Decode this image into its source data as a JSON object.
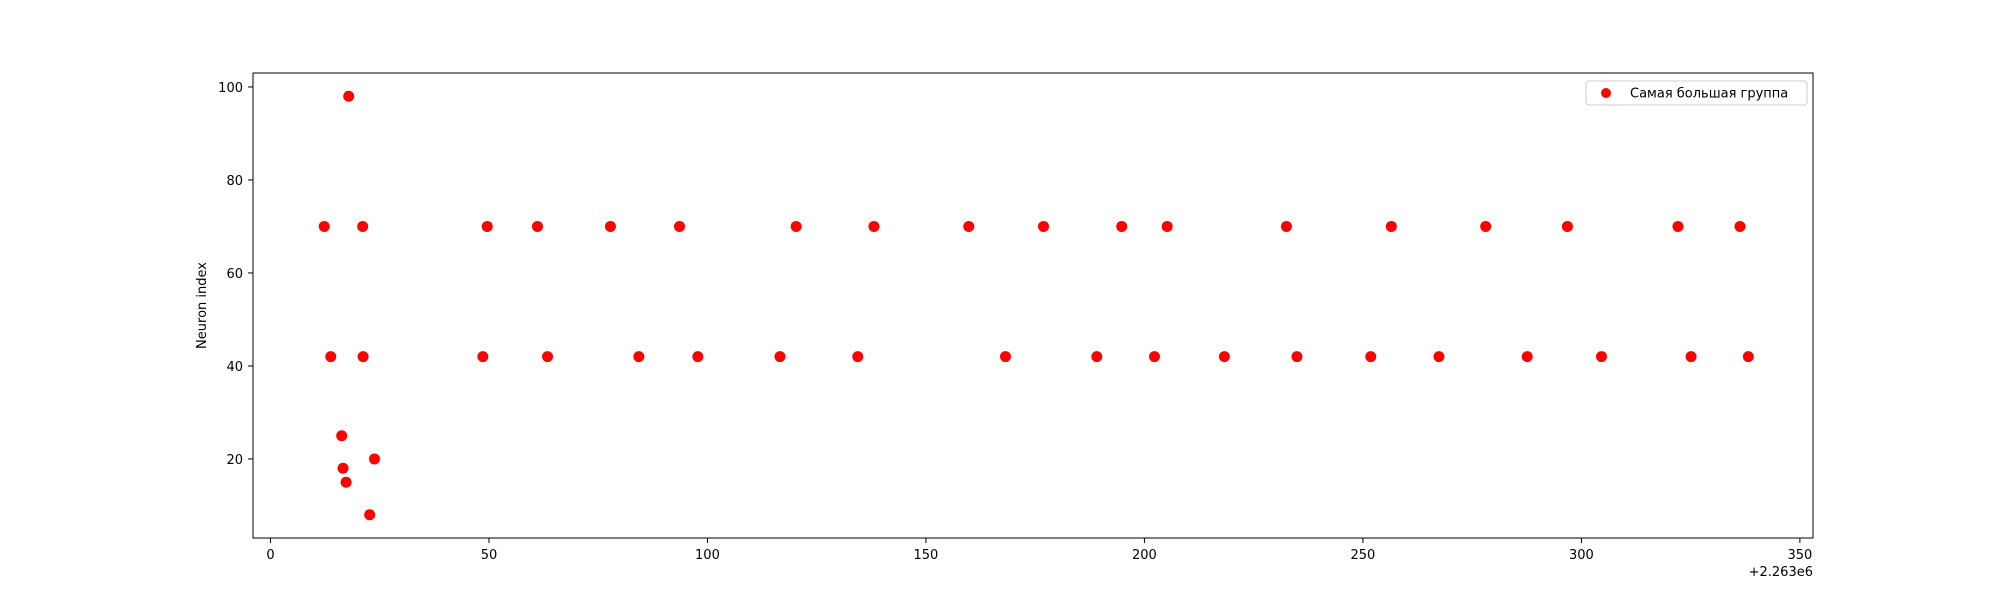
{
  "chart_data": {
    "type": "scatter",
    "title": "",
    "xlabel": "",
    "ylabel": "Neuron index",
    "x_offset_label": "+2.263e6",
    "xlim": [
      -4,
      353
    ],
    "ylim": [
      3,
      103
    ],
    "xticks": [
      0,
      50,
      100,
      150,
      200,
      250,
      300,
      350
    ],
    "yticks": [
      20,
      40,
      60,
      80,
      100
    ],
    "grid": false,
    "legend_position": "top-right",
    "series": [
      {
        "name": "Самая большая группа",
        "color": "#ff0000",
        "points": [
          [
            12.3,
            70
          ],
          [
            13.8,
            42
          ],
          [
            16.3,
            25
          ],
          [
            16.6,
            18
          ],
          [
            17.3,
            15
          ],
          [
            17.9,
            98
          ],
          [
            21.1,
            70
          ],
          [
            21.2,
            42
          ],
          [
            22.7,
            8
          ],
          [
            23.8,
            20
          ],
          [
            48.6,
            42
          ],
          [
            49.6,
            70
          ],
          [
            61.1,
            70
          ],
          [
            63.4,
            42
          ],
          [
            77.8,
            70
          ],
          [
            84.3,
            42
          ],
          [
            93.6,
            70
          ],
          [
            97.8,
            42
          ],
          [
            116.6,
            42
          ],
          [
            120.3,
            70
          ],
          [
            134.4,
            42
          ],
          [
            138.1,
            70
          ],
          [
            159.8,
            70
          ],
          [
            168.2,
            42
          ],
          [
            176.9,
            70
          ],
          [
            189.1,
            42
          ],
          [
            194.8,
            70
          ],
          [
            202.3,
            42
          ],
          [
            205.2,
            70
          ],
          [
            218.3,
            42
          ],
          [
            232.5,
            70
          ],
          [
            234.9,
            42
          ],
          [
            251.8,
            42
          ],
          [
            256.5,
            70
          ],
          [
            267.4,
            42
          ],
          [
            278.1,
            70
          ],
          [
            287.6,
            42
          ],
          [
            296.8,
            70
          ],
          [
            304.6,
            42
          ],
          [
            322.1,
            70
          ],
          [
            325.1,
            42
          ],
          [
            336.3,
            70
          ],
          [
            338.2,
            42
          ]
        ]
      }
    ]
  }
}
